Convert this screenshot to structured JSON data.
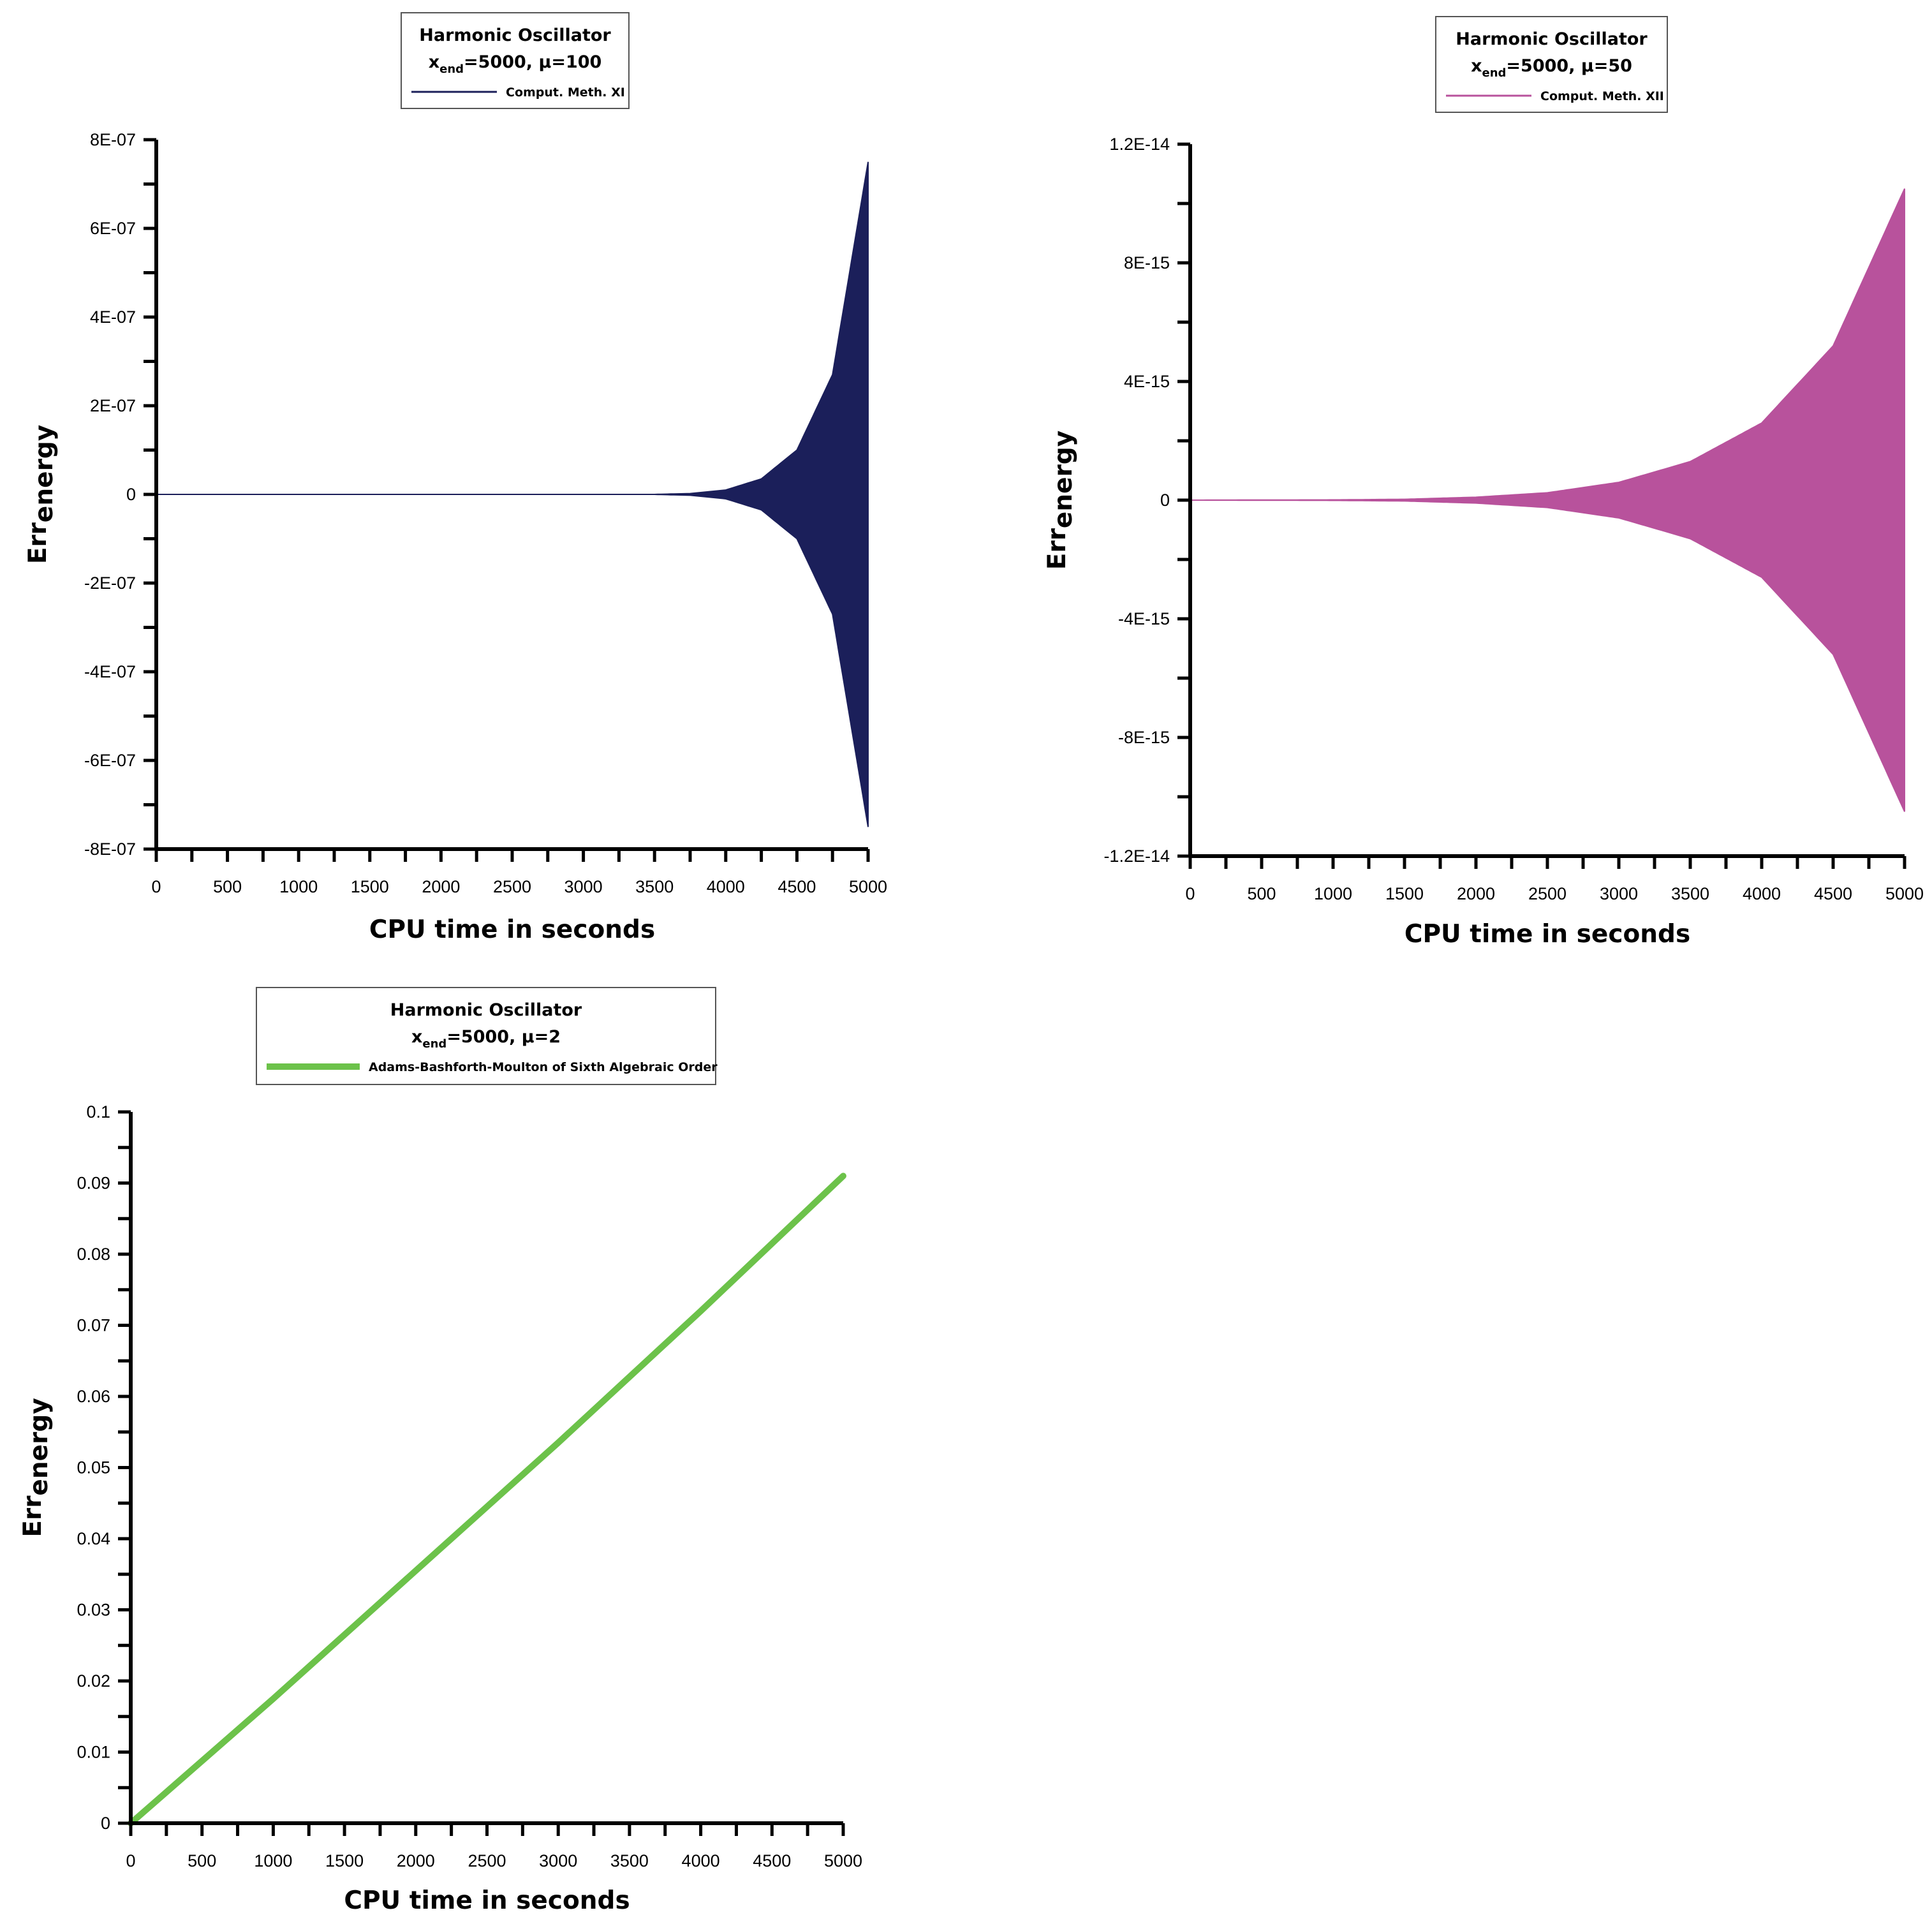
{
  "chart_data": [
    {
      "type": "area",
      "legend": {
        "title_line1": "Harmonic Oscillator",
        "title_line2_prefix": "x",
        "title_line2_sub": "end",
        "title_line2_suffix": "=5000, μ=100",
        "entry": "Comput. Meth. XI",
        "placement": "top"
      },
      "series": [
        {
          "name": "Comput. Meth. XI",
          "color": "#1b1f5a",
          "style": "oscillating-envelope"
        }
      ],
      "x": [
        0,
        3500,
        3750,
        4000,
        4250,
        4500,
        4750,
        5000
      ],
      "envelope": [
        0,
        5e-11,
        2e-09,
        1e-08,
        3.5e-08,
        1e-07,
        2.7e-07,
        7.5e-07
      ],
      "xlabel": "CPU time in seconds",
      "ylabel_main": "Err",
      "ylabel_sub": "energy",
      "xlim": [
        0,
        5000
      ],
      "ylim": [
        -8e-07,
        8e-07
      ],
      "xticks": [
        "0",
        "500",
        "1000",
        "1500",
        "2000",
        "2500",
        "3000",
        "3500",
        "4000",
        "4500",
        "5000"
      ],
      "yticks": [
        "8E-07",
        "6E-07",
        "4E-07",
        "2E-07",
        "0",
        "-2E-07",
        "-4E-07",
        "-6E-07",
        "-8E-07"
      ],
      "grid": false
    },
    {
      "type": "area",
      "legend": {
        "title_line1": "Harmonic Oscillator",
        "title_line2_prefix": "x",
        "title_line2_sub": "end",
        "title_line2_suffix": "=5000, μ=50",
        "entry": "Comput. Meth. XII",
        "placement": "top"
      },
      "series": [
        {
          "name": "Comput. Meth. XII",
          "color": "#b8529c",
          "style": "oscillating-envelope"
        }
      ],
      "x": [
        0,
        1000,
        1500,
        2000,
        2500,
        3000,
        3500,
        4000,
        4500,
        5000
      ],
      "envelope": [
        0,
        1e-17,
        3e-17,
        1e-16,
        2.5e-16,
        6e-16,
        1.3e-15,
        2.6e-15,
        5.2e-15,
        1.05e-14
      ],
      "xlabel": "CPU time in seconds",
      "ylabel_main": "Err",
      "ylabel_sub": "energy",
      "xlim": [
        0,
        5000
      ],
      "ylim": [
        -1.2e-14,
        1.2e-14
      ],
      "xticks": [
        "0",
        "500",
        "1000",
        "1500",
        "2000",
        "2500",
        "3000",
        "3500",
        "4000",
        "4500",
        "5000"
      ],
      "yticks": [
        "1.2E-14",
        "8E-15",
        "4E-15",
        "0",
        "-4E-15",
        "-8E-15",
        "-1.2E-14"
      ],
      "grid": false
    },
    {
      "type": "line",
      "legend": {
        "title_line1": "Harmonic Oscillator",
        "title_line2_prefix": "x",
        "title_line2_sub": "end",
        "title_line2_suffix": "=5000, μ=2",
        "entry": "Adams-Bashforth-Moulton of Sixth Algebraic Order",
        "placement": "top"
      },
      "series": [
        {
          "name": "Adams-Bashforth-Moulton of Sixth Algebraic Order",
          "color": "#6cc24a"
        }
      ],
      "x": [
        0,
        1000,
        2000,
        3000,
        4000,
        5000
      ],
      "y": [
        0,
        0.0175,
        0.0355,
        0.0535,
        0.072,
        0.091
      ],
      "xlabel": "CPU time in seconds",
      "ylabel_main": "Err",
      "ylabel_sub": "energy",
      "xlim": [
        0,
        5000
      ],
      "ylim": [
        0,
        0.1
      ],
      "xticks": [
        "0",
        "500",
        "1000",
        "1500",
        "2000",
        "2500",
        "3000",
        "3500",
        "4000",
        "4500",
        "5000"
      ],
      "yticks": [
        "0.1",
        "0.09",
        "0.08",
        "0.07",
        "0.06",
        "0.05",
        "0.04",
        "0.03",
        "0.02",
        "0.01",
        "0"
      ],
      "grid": false
    }
  ]
}
